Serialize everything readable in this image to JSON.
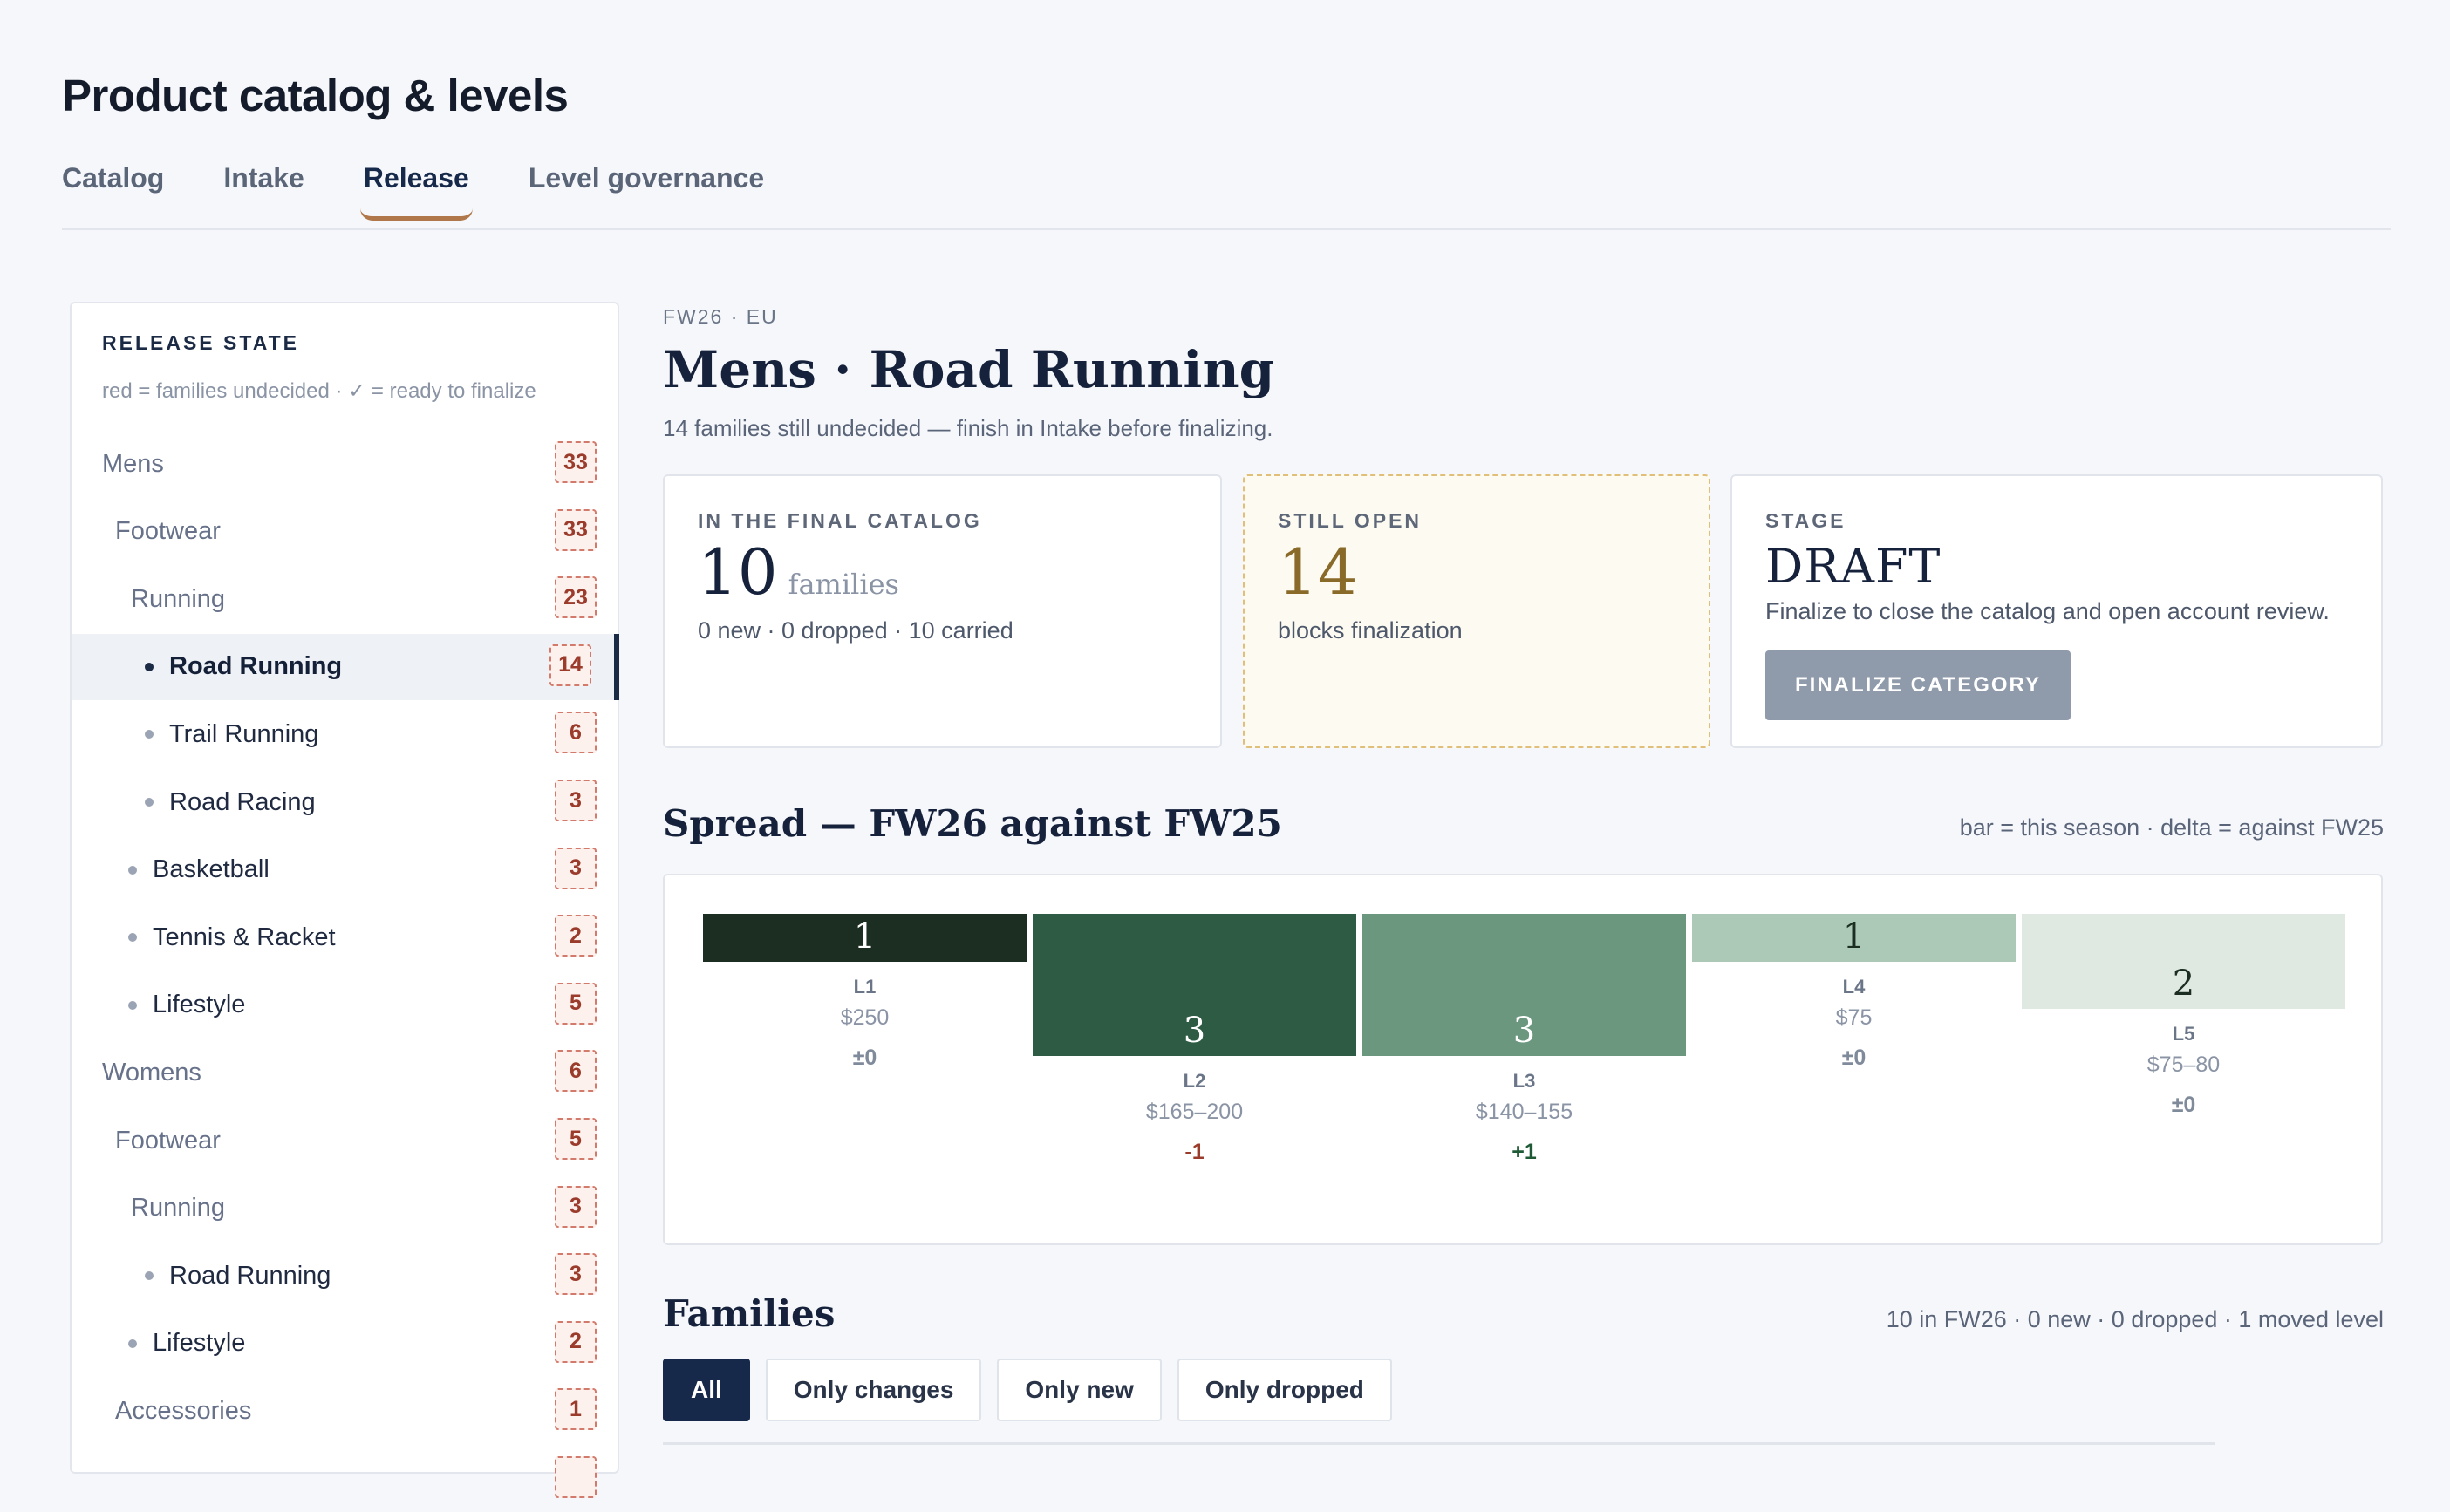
{
  "page": {
    "title": "Product catalog & levels"
  },
  "tabs": [
    {
      "label": "Catalog",
      "active": false
    },
    {
      "label": "Intake",
      "active": false
    },
    {
      "label": "Release",
      "active": true
    },
    {
      "label": "Level governance",
      "active": false
    }
  ],
  "sidebar": {
    "title": "RELEASE STATE",
    "note": "red = families undecided · ✓ = ready to finalize",
    "items": [
      {
        "label": "Mens",
        "count": "33",
        "depth": 0
      },
      {
        "label": "Footwear",
        "count": "33",
        "depth": 1
      },
      {
        "label": "Running",
        "count": "23",
        "depth": 2
      },
      {
        "label": "Road Running",
        "count": "14",
        "depth": 3,
        "active": true
      },
      {
        "label": "Trail Running",
        "count": "6",
        "depth": 3
      },
      {
        "label": "Road Racing",
        "count": "3",
        "depth": 3
      },
      {
        "label": "Basketball",
        "count": "3",
        "depth": 2.5
      },
      {
        "label": "Tennis & Racket",
        "count": "2",
        "depth": 2.5
      },
      {
        "label": "Lifestyle",
        "count": "5",
        "depth": 2.5
      },
      {
        "label": "Womens",
        "count": "6",
        "depth": 0
      },
      {
        "label": "Footwear",
        "count": "5",
        "depth": 1
      },
      {
        "label": "Running",
        "count": "3",
        "depth": 2
      },
      {
        "label": "Road Running",
        "count": "3",
        "depth": 3
      },
      {
        "label": "Lifestyle",
        "count": "2",
        "depth": 2.5
      },
      {
        "label": "Accessories",
        "count": "1",
        "depth": 1
      },
      {
        "label": "",
        "count": "",
        "depth": 1
      }
    ]
  },
  "main": {
    "eyebrow": "FW26 · EU",
    "title": "Mens · Road Running",
    "subtitle": "14 families still undecided — finish in Intake before finalizing."
  },
  "cards": {
    "final": {
      "label": "IN THE FINAL CATALOG",
      "value": "10",
      "unit": "families",
      "foot": "0 new · 0 dropped · 10 carried"
    },
    "open": {
      "label": "STILL OPEN",
      "value": "14",
      "foot": "blocks finalization"
    },
    "stage": {
      "label": "STAGE",
      "value": "DRAFT",
      "note": "Finalize to close the catalog and open account review.",
      "button": "FINALIZE CATEGORY"
    }
  },
  "spread": {
    "title": "Spread — FW26 against FW25",
    "note": "bar = this season · delta = against FW25"
  },
  "chart_data": {
    "type": "bar",
    "title": "Spread — FW26 against FW25",
    "categories": [
      "L1",
      "L2",
      "L3",
      "L4",
      "L5"
    ],
    "values": [
      1,
      3,
      3,
      1,
      2
    ],
    "prices": [
      "$250",
      "$165–200",
      "$140–155",
      "$75",
      "$75–80"
    ],
    "deltas": [
      "±0",
      "-1",
      "+1",
      "±0",
      "±0"
    ],
    "colors": [
      "#1b2e21",
      "#2e5b44",
      "#6b977f",
      "#abc9b6",
      "#dfe9e1"
    ],
    "label_colors": [
      "#ffffff",
      "#ffffff",
      "#ffffff",
      "#1b2e21",
      "#1b2e21"
    ],
    "delta_colors": {
      "neg": "#9b3b2b",
      "pos": "#1f5a36",
      "zero": "#7f8a9b"
    }
  },
  "families": {
    "title": "Families",
    "summary": "10 in FW26 · 0 new · 0 dropped · 1 moved level",
    "filters": [
      {
        "label": "All",
        "active": true
      },
      {
        "label": "Only changes",
        "active": false
      },
      {
        "label": "Only new",
        "active": false
      },
      {
        "label": "Only dropped",
        "active": false
      }
    ]
  }
}
